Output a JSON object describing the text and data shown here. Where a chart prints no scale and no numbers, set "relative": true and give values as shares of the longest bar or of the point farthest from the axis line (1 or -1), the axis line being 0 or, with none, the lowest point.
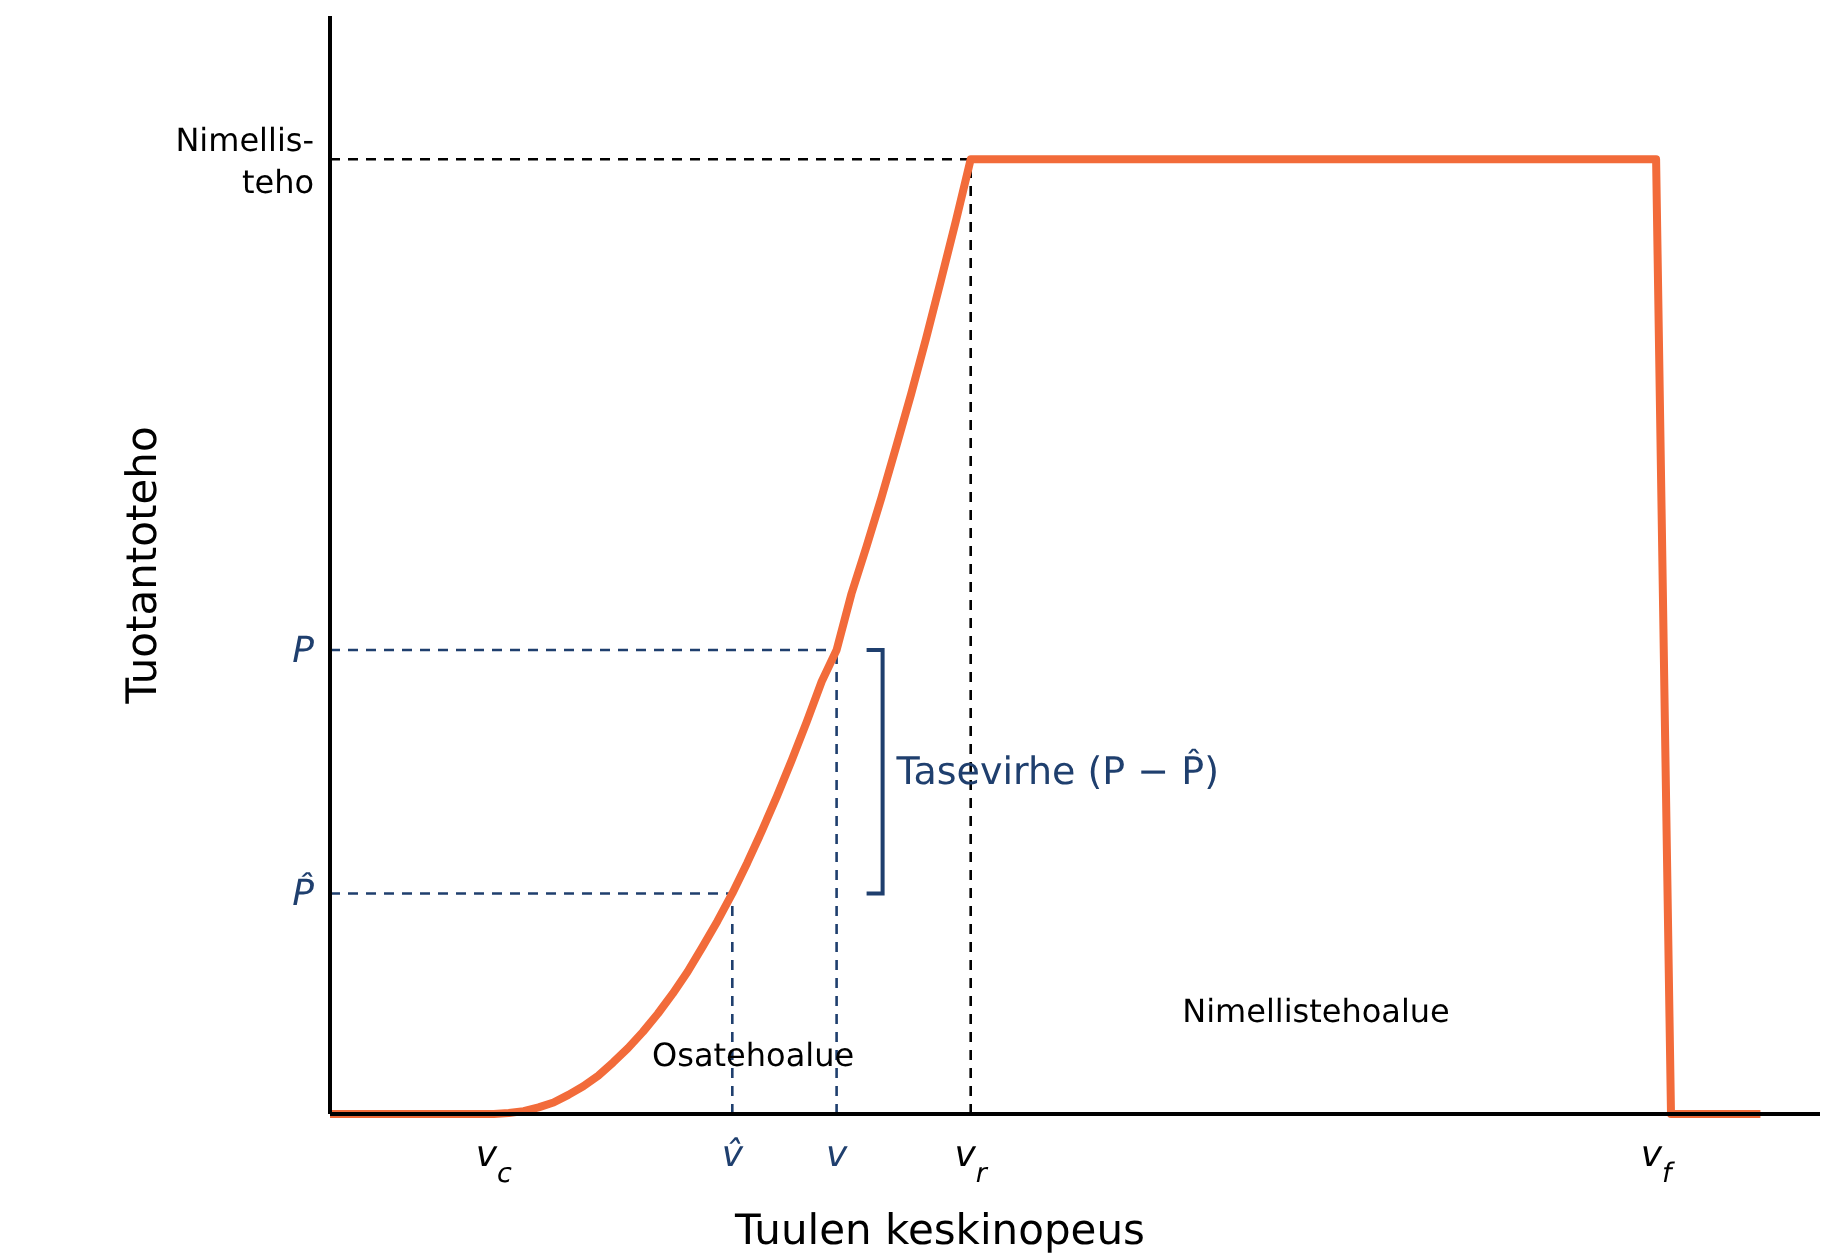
{
  "chart_data": {
    "type": "line",
    "xlabel": "Tuulen keskinopeus",
    "ylabel": "Tuotantoteho",
    "relative": true,
    "categories": [
      null,
      null,
      null,
      null,
      null,
      null,
      null,
      null,
      null,
      null,
      null,
      "v$_{c}$",
      null,
      null,
      null,
      null,
      null,
      null,
      null,
      null,
      null,
      null,
      null,
      null,
      null,
      null,
      null,
      "v̂",
      null,
      null,
      null,
      null,
      null,
      null,
      "v",
      null,
      null,
      null,
      null,
      null,
      null,
      null,
      null,
      "v$_{r}$",
      null,
      null,
      null,
      null,
      null,
      null,
      null,
      null,
      null,
      null,
      null,
      null,
      null,
      null,
      null,
      null,
      null,
      null,
      null,
      null,
      null,
      null,
      null,
      null,
      null,
      null,
      null,
      null,
      null,
      null,
      null,
      null,
      null,
      null,
      null,
      null,
      null,
      null,
      null,
      null,
      null,
      null,
      null,
      null,
      null,
      "v$_{f}$",
      null,
      null,
      null,
      null,
      null,
      null,
      null
    ],
    "series": [
      {
        "color": "#f26b3a",
        "values": [
          0,
          0,
          0,
          0,
          0,
          0,
          0,
          0,
          0,
          0,
          0,
          0,
          0.001,
          0.003,
          0.007,
          0.012,
          0.02,
          0.029,
          0.04,
          0.054,
          0.069,
          0.086,
          0.105,
          0.126,
          0.149,
          0.175,
          0.202,
          0.231,
          0.263,
          0.297,
          0.333,
          0.371,
          0.411,
          0.453,
          0.486,
          0.545,
          0.594,
          0.645,
          0.699,
          0.754,
          0.812,
          0.873,
          0.935,
          1,
          1,
          1,
          1,
          1,
          1,
          1,
          1,
          1,
          1,
          1,
          1,
          1,
          1,
          1,
          1,
          1,
          1,
          1,
          1,
          1,
          1,
          1,
          1,
          1,
          1,
          1,
          1,
          1,
          1,
          1,
          1,
          1,
          1,
          1,
          1,
          1,
          1,
          1,
          1,
          1,
          1,
          1,
          1,
          1,
          1,
          1,
          0,
          0,
          0,
          0,
          0,
          0,
          0
        ]
      }
    ],
    "ref_lines": [
      {
        "axis": "y",
        "value": 0.231,
        "label": "P̂",
        "color": "#1f3f6e",
        "line_style": "dashed"
      },
      {
        "axis": "y",
        "value": 0.486,
        "label": "P",
        "color": "#1f3f6e",
        "line_style": "dashed"
      },
      {
        "axis": "y",
        "value": 1,
        "label": "Nimellis-\nteho",
        "color": "#000000",
        "line_style": "dashed"
      },
      {
        "axis": "x",
        "value": "v̂",
        "color": "#1f3f6e",
        "line_style": "dashed"
      },
      {
        "axis": "x",
        "value": "v",
        "color": "#1f3f6e",
        "line_style": "dashed"
      },
      {
        "axis": "x",
        "value": "v$_{r}$",
        "color": "#000000",
        "line_style": "dashed"
      }
    ],
    "annotations": [
      "Osatehoalue",
      "Tasevirhe (P − P̂)",
      "Nimellistehoalue"
    ]
  }
}
